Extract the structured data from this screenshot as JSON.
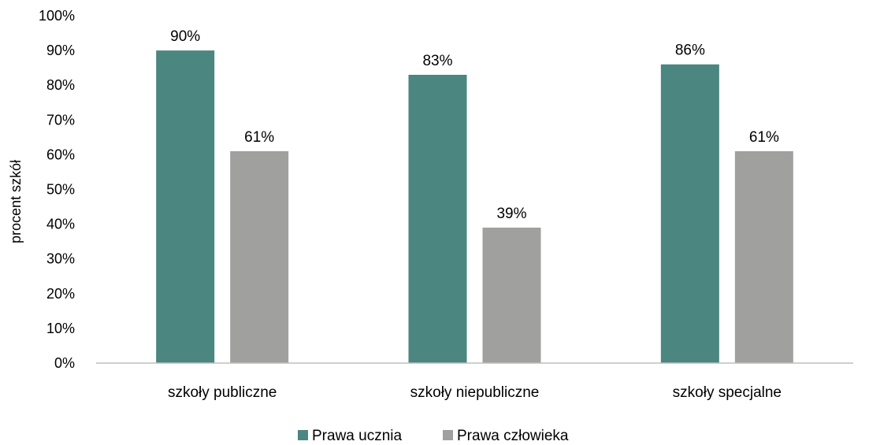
{
  "chart_data": {
    "type": "bar",
    "categories": [
      "szkoły publiczne",
      "szkoły niepubliczne",
      "szkoły specjalne"
    ],
    "series": [
      {
        "name": "Prawa ucznia",
        "values": [
          90,
          83,
          86
        ],
        "color": "#4b8680"
      },
      {
        "name": "Prawa człowieka",
        "values": [
          61,
          39,
          61
        ],
        "color": "#a0a09f"
      }
    ],
    "data_labels": [
      [
        "90%",
        "83%",
        "86%"
      ],
      [
        "61%",
        "39%",
        "61%"
      ]
    ],
    "ylabel": "procent szkół",
    "ylim": [
      0,
      100
    ],
    "yticks": [
      "0%",
      "10%",
      "20%",
      "30%",
      "40%",
      "50%",
      "60%",
      "70%",
      "80%",
      "90%",
      "100%"
    ],
    "grid": false,
    "legend_position": "bottom"
  }
}
